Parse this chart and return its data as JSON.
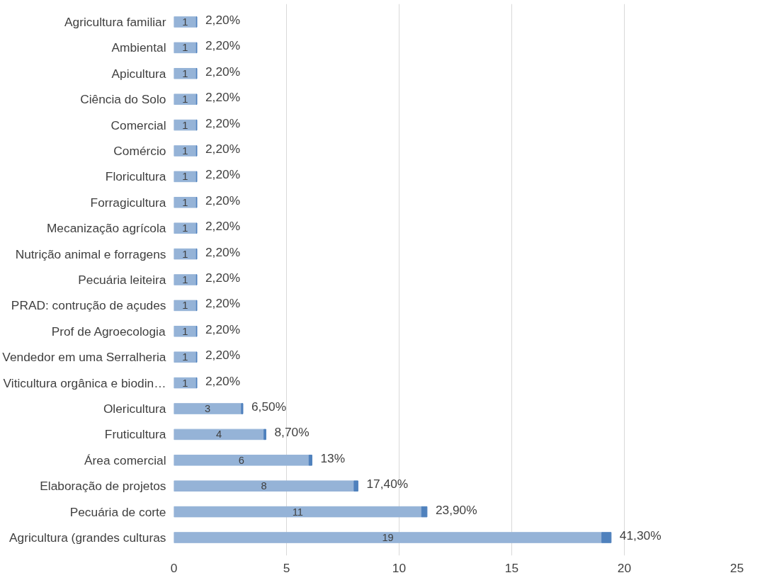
{
  "chart_data": {
    "type": "bar",
    "orientation": "horizontal",
    "stacked": true,
    "categories": [
      "Agricultura familiar",
      "Ambiental",
      "Apicultura",
      "Ciência do Solo",
      "Comercial",
      "Comércio",
      "Floricultura",
      "Forragicultura",
      "Mecanização agrícola",
      "Nutrição animal e forragens",
      "Pecuária leiteira",
      "PRAD: contrução de açudes",
      "Prof de Agroecologia",
      "Vendedor em uma Serralheria",
      "Viticultura orgânica e biodin…",
      "Olericultura",
      "Fruticultura",
      "Área comercial",
      "Elaboração de projetos",
      "Pecuária de corte",
      "Agricultura (grandes culturas"
    ],
    "series": [
      {
        "color": "#95b3d7",
        "values": [
          1,
          1,
          1,
          1,
          1,
          1,
          1,
          1,
          1,
          1,
          1,
          1,
          1,
          1,
          1,
          3,
          4,
          6,
          8,
          11,
          19
        ],
        "value_labels": [
          "1",
          "1",
          "1",
          "1",
          "1",
          "1",
          "1",
          "1",
          "1",
          "1",
          "1",
          "1",
          "1",
          "1",
          "1",
          "3",
          "4",
          "6",
          "8",
          "11",
          "19"
        ]
      },
      {
        "color": "#4f81bd",
        "values": [
          0.022,
          0.022,
          0.022,
          0.022,
          0.022,
          0.022,
          0.022,
          0.022,
          0.022,
          0.022,
          0.022,
          0.022,
          0.022,
          0.022,
          0.022,
          0.065,
          0.087,
          0.13,
          0.174,
          0.239,
          0.413
        ],
        "value_labels": [
          "2,20%",
          "2,20%",
          "2,20%",
          "2,20%",
          "2,20%",
          "2,20%",
          "2,20%",
          "2,20%",
          "2,20%",
          "2,20%",
          "2,20%",
          "2,20%",
          "2,20%",
          "2,20%",
          "2,20%",
          "6,50%",
          "8,70%",
          "13%",
          "17,40%",
          "23,90%",
          "41,30%"
        ]
      }
    ],
    "xlim": [
      0,
      25
    ],
    "xticks": [
      0,
      5,
      10,
      15,
      20,
      25
    ],
    "grid": "x"
  }
}
